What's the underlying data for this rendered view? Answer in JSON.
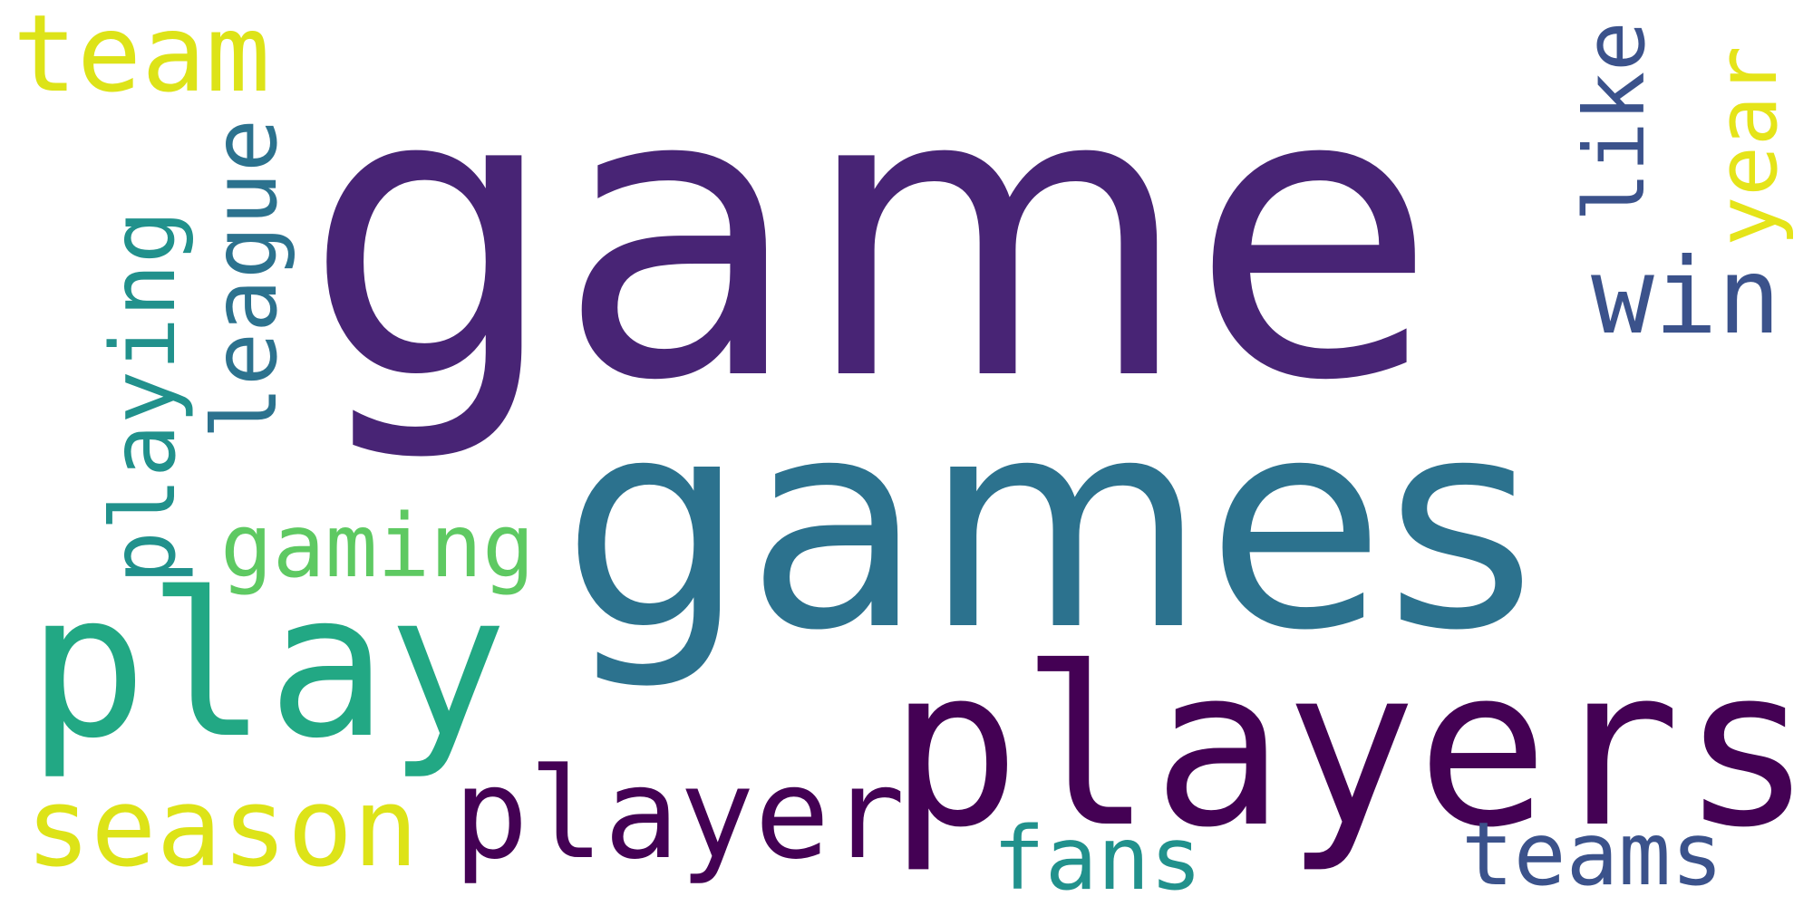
{
  "word_cloud": {
    "background": "#ffffff",
    "words": [
      {
        "text": "game",
        "color": "#482475",
        "rotation": "horizontal"
      },
      {
        "text": "games",
        "color": "#2c728e",
        "rotation": "horizontal"
      },
      {
        "text": "players",
        "color": "#440154",
        "rotation": "horizontal"
      },
      {
        "text": "play",
        "color": "#22a884",
        "rotation": "horizontal"
      },
      {
        "text": "player",
        "color": "#440154",
        "rotation": "horizontal"
      },
      {
        "text": "season",
        "color": "#dde318",
        "rotation": "horizontal"
      },
      {
        "text": "team",
        "color": "#dde318",
        "rotation": "horizontal"
      },
      {
        "text": "gaming",
        "color": "#5ec962",
        "rotation": "horizontal"
      },
      {
        "text": "fans",
        "color": "#21918c",
        "rotation": "horizontal"
      },
      {
        "text": "teams",
        "color": "#3b528b",
        "rotation": "horizontal"
      },
      {
        "text": "win",
        "color": "#3b528b",
        "rotation": "horizontal"
      },
      {
        "text": "like",
        "color": "#3b528b",
        "rotation": "vertical"
      },
      {
        "text": "year",
        "color": "#e5e419",
        "rotation": "vertical"
      },
      {
        "text": "playing",
        "color": "#21918c",
        "rotation": "vertical"
      },
      {
        "text": "league",
        "color": "#2c728e",
        "rotation": "vertical"
      }
    ]
  }
}
